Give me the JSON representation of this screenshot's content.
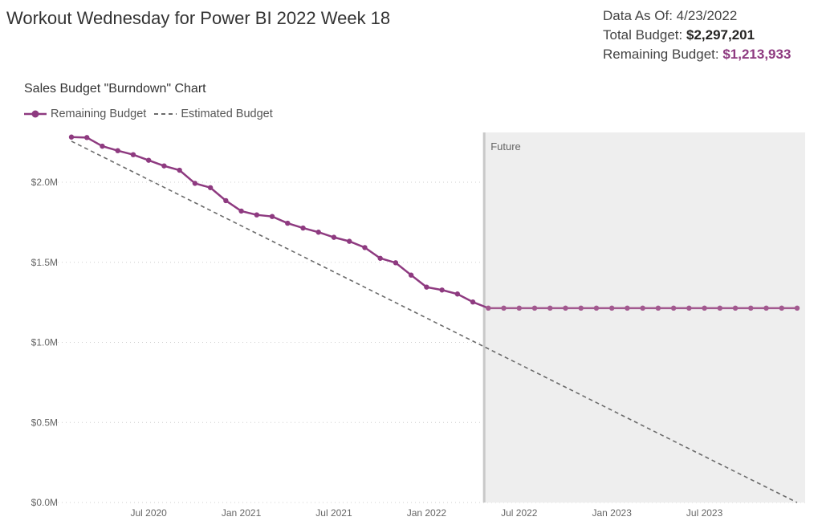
{
  "page": {
    "title": "Workout Wednesday for Power BI 2022 Week 18"
  },
  "info": {
    "data_as_of_label": "Data As Of:",
    "data_as_of_value": "4/23/2022",
    "total_budget_label": "Total Budget:",
    "total_budget_value": "$2,297,201",
    "remaining_budget_label": "Remaining Budget:",
    "remaining_budget_value": "$1,213,933"
  },
  "colors": {
    "remaining": "#8e3a80",
    "remaining_future": "#a2598f",
    "estimated": "#6b6b6b",
    "future_fill": "#eeeeee",
    "future_edge": "#c8c8c8"
  },
  "chart_data": {
    "type": "line",
    "title": "Sales Budget \"Burndown\" Chart",
    "legend": {
      "position": "top-left",
      "entries": [
        "Remaining Budget",
        "Estimated Budget"
      ]
    },
    "x_ticks": [
      {
        "date": "2020-07",
        "label": "Jul 2020"
      },
      {
        "date": "2021-01",
        "label": "Jan 2021"
      },
      {
        "date": "2021-07",
        "label": "Jul 2021"
      },
      {
        "date": "2022-01",
        "label": "Jan 2022"
      },
      {
        "date": "2022-07",
        "label": "Jul 2022"
      },
      {
        "date": "2023-01",
        "label": "Jan 2023"
      },
      {
        "date": "2023-07",
        "label": "Jul 2023"
      }
    ],
    "y_ticks": [
      {
        "value": 0,
        "label": "$0.0M"
      },
      {
        "value": 500000,
        "label": "$0.5M"
      },
      {
        "value": 1000000,
        "label": "$1.0M"
      },
      {
        "value": 1500000,
        "label": "$1.5M"
      },
      {
        "value": 2000000,
        "label": "$2.0M"
      }
    ],
    "ylim": [
      0,
      2300000
    ],
    "xlim": [
      "2020-02",
      "2024-01"
    ],
    "grid": "horizontal dotted",
    "future_band": {
      "start": "2022-04-23",
      "label": "Future"
    },
    "series": [
      {
        "name": "Remaining Budget",
        "style": "solid-markers",
        "x": [
          "2020-02",
          "2020-03",
          "2020-04",
          "2020-05",
          "2020-06",
          "2020-07",
          "2020-08",
          "2020-09",
          "2020-10",
          "2020-11",
          "2020-12",
          "2021-01",
          "2021-02",
          "2021-03",
          "2021-04",
          "2021-05",
          "2021-06",
          "2021-07",
          "2021-08",
          "2021-09",
          "2021-10",
          "2021-11",
          "2021-12",
          "2022-01",
          "2022-02",
          "2022-03",
          "2022-04",
          "2022-05",
          "2022-06",
          "2022-07",
          "2022-08",
          "2022-09",
          "2022-10",
          "2022-11",
          "2022-12",
          "2023-01",
          "2023-02",
          "2023-03",
          "2023-04",
          "2023-05",
          "2023-06",
          "2023-07",
          "2023-08",
          "2023-09",
          "2023-10",
          "2023-11",
          "2023-12",
          "2024-01"
        ],
        "values": [
          2282000,
          2279000,
          2225000,
          2197000,
          2172000,
          2137000,
          2102000,
          2075000,
          1993000,
          1966000,
          1885000,
          1820000,
          1796000,
          1786000,
          1744000,
          1714000,
          1688000,
          1656000,
          1631000,
          1592000,
          1525000,
          1497000,
          1420000,
          1345000,
          1327000,
          1302000,
          1252000,
          1213933,
          1213933,
          1213933,
          1213933,
          1213933,
          1213933,
          1213933,
          1213933,
          1213933,
          1213933,
          1213933,
          1213933,
          1213933,
          1213933,
          1213933,
          1213933,
          1213933,
          1213933,
          1213933,
          1213933,
          1213933
        ]
      },
      {
        "name": "Estimated Budget",
        "style": "dashed",
        "x": [
          "2020-02",
          "2024-01"
        ],
        "values": [
          2256000,
          0
        ]
      }
    ]
  }
}
